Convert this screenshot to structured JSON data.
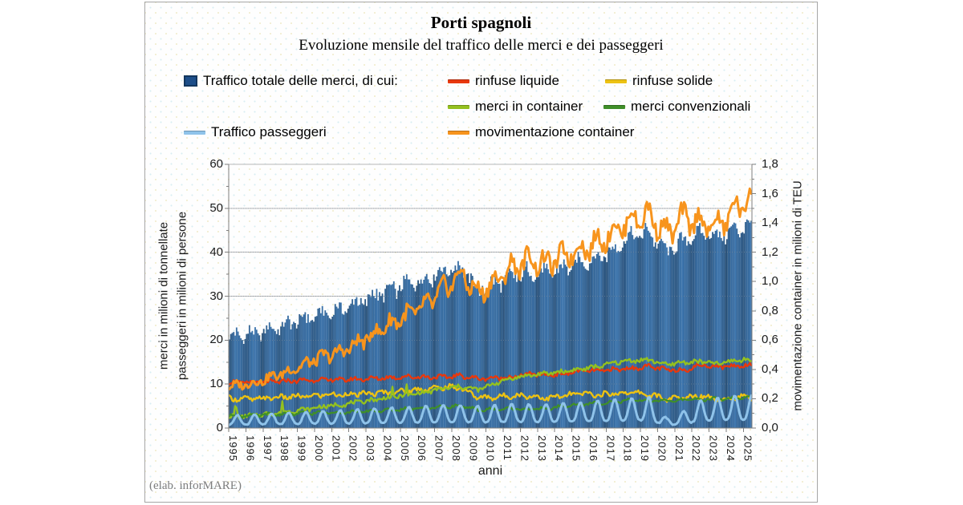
{
  "header": {
    "title": "Porti spagnoli",
    "subtitle": "Evoluzione mensile del traffico delle merci e dei passeggeri"
  },
  "legend": {
    "items": [
      {
        "label": "Traffico totale delle merci, di cui:",
        "marker": "square",
        "color": "#1d4e89",
        "row": 0,
        "col": 0
      },
      {
        "label": "rinfuse liquide",
        "marker": "line",
        "color": "#e8380d",
        "row": 0,
        "col": 1
      },
      {
        "label": "rinfuse solide",
        "marker": "line",
        "color": "#edc213",
        "row": 0,
        "col": 2
      },
      {
        "label": "merci in container",
        "marker": "line",
        "color": "#94c11f",
        "row": 1,
        "col": 0
      },
      {
        "label": "merci convenzionali",
        "marker": "line",
        "color": "#3f8f29",
        "row": 1,
        "col": 1
      },
      {
        "label": "Traffico passeggeri",
        "marker": "line",
        "color": "#8fc3ea",
        "row": 2,
        "col": 0
      },
      {
        "label": "movimentazione container",
        "marker": "line",
        "color": "#f7941d",
        "row": 2,
        "col": 1
      }
    ]
  },
  "axes": {
    "left": {
      "title_line1": "merci in milioni di tonnellate",
      "title_line2": "passeggeri in milioni di persone",
      "tick_labels": [
        "0",
        "10",
        "20",
        "30",
        "40",
        "50",
        "60"
      ]
    },
    "right": {
      "title": "movimentazione container in milioni di TEU",
      "tick_labels": [
        "0,0",
        "0,2",
        "0,4",
        "0,6",
        "0,8",
        "1,0",
        "1,2",
        "1,4",
        "1,6",
        "1,8"
      ]
    },
    "x": {
      "title": "anni",
      "years": [
        1995,
        1996,
        1997,
        1998,
        1999,
        2000,
        2001,
        2002,
        2003,
        2004,
        2005,
        2006,
        2007,
        2008,
        2009,
        2010,
        2011,
        2012,
        2013,
        2014,
        2015,
        2016,
        2017,
        2018,
        2019,
        2020,
        2021,
        2022,
        2023,
        2024,
        2025
      ]
    }
  },
  "footer": {
    "credit": "(elab. inforMARE)"
  },
  "chart_data": {
    "type": "mixed-bar-line",
    "title": "Porti spagnoli",
    "subtitle": "Evoluzione mensile del traffico delle merci e dei passeggeri",
    "frequency": "monthly",
    "x_range": [
      "1995-01",
      "2025-06"
    ],
    "xlabel": "anni",
    "ylabel_left": "merci in milioni di tonnellate / passeggeri in milioni di persone",
    "ylabel_right": "movimentazione container in milioni di TEU",
    "ylim_left": [
      0,
      60
    ],
    "ylim_right": [
      0.0,
      1.8
    ],
    "grid": "horizontal",
    "legend_position": "top",
    "x_years": [
      1995,
      1996,
      1997,
      1998,
      1999,
      2000,
      2001,
      2002,
      2003,
      2004,
      2005,
      2006,
      2007,
      2008,
      2009,
      2010,
      2011,
      2012,
      2013,
      2014,
      2015,
      2016,
      2017,
      2018,
      2019,
      2020,
      2021,
      2022,
      2023,
      2024,
      2025
    ],
    "values_note": "annual mean level of the monthly series, read from the plot",
    "series": [
      {
        "name": "Traffico totale delle merci",
        "type": "bar",
        "axis": "left",
        "color": "#2e6496",
        "annual_means": [
          21.0,
          21.5,
          22.5,
          23.5,
          25.0,
          26.0,
          27.0,
          28.5,
          30.0,
          31.5,
          33.0,
          34.0,
          36.0,
          36.5,
          31.5,
          33.0,
          34.5,
          35.5,
          35.0,
          36.5,
          37.5,
          38.5,
          41.0,
          43.5,
          44.5,
          40.0,
          42.5,
          44.5,
          43.5,
          45.0,
          46.5
        ]
      },
      {
        "name": "rinfuse liquide",
        "type": "line",
        "axis": "left",
        "color": "#e8380d",
        "annual_means": [
          10.4,
          10.3,
          10.5,
          10.7,
          10.9,
          11.0,
          11.0,
          11.1,
          11.3,
          11.5,
          11.7,
          11.6,
          11.6,
          11.9,
          11.2,
          11.4,
          11.6,
          12.3,
          12.1,
          12.3,
          13.0,
          13.0,
          13.3,
          13.6,
          14.0,
          13.2,
          13.2,
          14.3,
          14.0,
          14.1,
          14.4
        ]
      },
      {
        "name": "rinfuse solide",
        "type": "line",
        "axis": "left",
        "color": "#edc213",
        "annual_means": [
          6.7,
          6.6,
          6.9,
          7.1,
          7.2,
          7.6,
          7.6,
          7.7,
          7.9,
          8.2,
          8.5,
          8.9,
          9.3,
          9.2,
          6.9,
          7.0,
          7.4,
          7.3,
          6.8,
          7.3,
          7.9,
          7.5,
          7.9,
          8.1,
          7.6,
          6.6,
          6.9,
          7.4,
          6.6,
          6.9,
          7.1
        ]
      },
      {
        "name": "merci in container",
        "type": "line",
        "axis": "left",
        "color": "#94c11f",
        "annual_means": [
          2.6,
          2.9,
          3.3,
          3.8,
          4.3,
          4.9,
          5.3,
          5.9,
          6.5,
          7.0,
          7.6,
          8.2,
          9.0,
          9.4,
          8.7,
          10.2,
          11.4,
          12.0,
          12.4,
          12.9,
          13.4,
          14.0,
          14.9,
          15.4,
          15.5,
          14.4,
          15.0,
          15.1,
          14.6,
          15.4,
          15.6
        ]
      },
      {
        "name": "merci convenzionali",
        "type": "line",
        "axis": "left",
        "color": "#3f8f29",
        "annual_means": [
          2.8,
          2.9,
          3.1,
          3.2,
          3.4,
          3.5,
          3.6,
          3.7,
          3.9,
          4.1,
          4.4,
          4.6,
          4.9,
          5.0,
          4.1,
          4.3,
          4.4,
          4.3,
          4.4,
          5.0,
          5.4,
          5.7,
          6.0,
          6.3,
          6.3,
          6.1,
          6.4,
          6.6,
          6.6,
          6.8,
          7.0
        ]
      },
      {
        "name": "Traffico passeggeri",
        "type": "line",
        "axis": "left",
        "color": "#8fc3ea",
        "annual_means": [
          1.5,
          1.6,
          1.7,
          1.8,
          1.9,
          2.0,
          2.1,
          2.2,
          2.3,
          2.4,
          2.5,
          2.6,
          2.7,
          2.7,
          2.6,
          2.7,
          2.8,
          2.8,
          2.8,
          2.9,
          3.0,
          3.2,
          3.4,
          3.5,
          3.6,
          1.1,
          2.0,
          3.3,
          3.6,
          3.8,
          3.9
        ]
      },
      {
        "name": "movimentazione container",
        "type": "line",
        "axis": "right",
        "color": "#f7941d",
        "annual_means": [
          0.29,
          0.31,
          0.35,
          0.39,
          0.44,
          0.49,
          0.52,
          0.58,
          0.65,
          0.72,
          0.78,
          0.84,
          0.95,
          1.05,
          0.92,
          1.0,
          1.1,
          1.15,
          1.12,
          1.18,
          1.22,
          1.27,
          1.35,
          1.43,
          1.45,
          1.33,
          1.44,
          1.4,
          1.38,
          1.5,
          1.58
        ]
      }
    ]
  }
}
